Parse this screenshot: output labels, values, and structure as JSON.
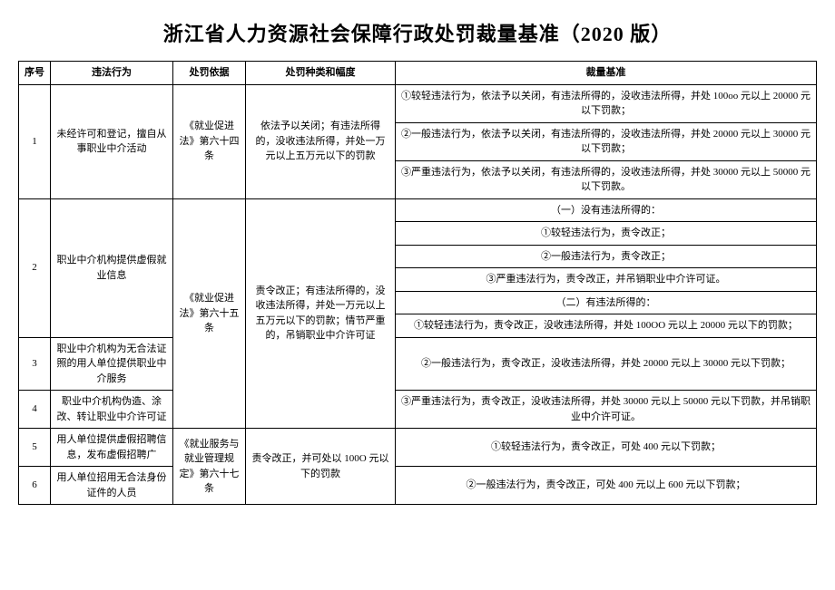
{
  "title": "浙江省人力资源社会保障行政处罚裁量基准（2020 版）",
  "headers": {
    "seq": "序号",
    "act": "违法行为",
    "basis": "处罚依据",
    "type": "处罚种类和幅度",
    "std": "裁量基准"
  },
  "row1": {
    "seq": "1",
    "act": "未经许可和登记，擅自从事职业中介活动",
    "basis": "《就业促进法》第六十四条",
    "type": "依法予以关闭；有违法所得的，没收违法所得，并处一万元以上五万元以下的罚款",
    "std1": "①较轻违法行为，依法予以关闭，有违法所得的，没收违法所得，并处 100oo 元以上 20000 元以下罚款；",
    "std2": "②一般违法行为，依法予以关闭，有违法所得的，没收违法所得，并处 20000 元以上 30000 元以下罚款；",
    "std3": "③严重违法行为，依法予以关闭，有违法所得的，没收违法所得，并处 30000 元以上 50000 元以下罚款。"
  },
  "row2": {
    "seq": "2",
    "act": "职业中介机构提供虚假就业信息",
    "basis": "《就业促进法》第六十五条",
    "type": "责令改正；有违法所得的，没收违法所得，并处一万元以上五万元以下的罚款；情节严重的，吊销职业中介许可证",
    "std1": "（一）没有违法所得的：",
    "std2": "①较轻违法行为，责令改正；",
    "std3": "②一般违法行为，责令改正；",
    "std4": "③严重违法行为，责令改正，并吊销职业中介许可证。",
    "std5": "（二）有违法所得的：",
    "std6": "①较轻违法行为，责令改正，没收违法所得，并处 100OO 元以上 20000 元以下的罚款；"
  },
  "row3": {
    "seq": "3",
    "act": "职业中介机构为无合法证照的用人单位提供职业中介服务",
    "std": "②一般违法行为，责令改正，没收违法所得，并处 20000 元以上 30000 元以下罚款；"
  },
  "row4": {
    "seq": "4",
    "act": "职业中介机构伪造、涂改、转让职业中介许可证",
    "std": "③严重违法行为，责令改正，没收违法所得，并处 30000 元以上 50000 元以下罚款，并吊销职业中介许可证。"
  },
  "row5": {
    "seq": "5",
    "act": "用人单位提供虚假招聘信息，发布虚假招聘广",
    "basis": "《就业服务与就业管理规定》第六十七条",
    "type": "责令改正，并可处以 100O 元以下的罚款",
    "std": "①较轻违法行为，责令改正，可处 400 元以下罚款；"
  },
  "row6": {
    "seq": "6",
    "act": "用人单位招用无合法身份证件的人员",
    "std": "②一般违法行为，责令改正，可处 400 元以上 600 元以下罚款；"
  }
}
